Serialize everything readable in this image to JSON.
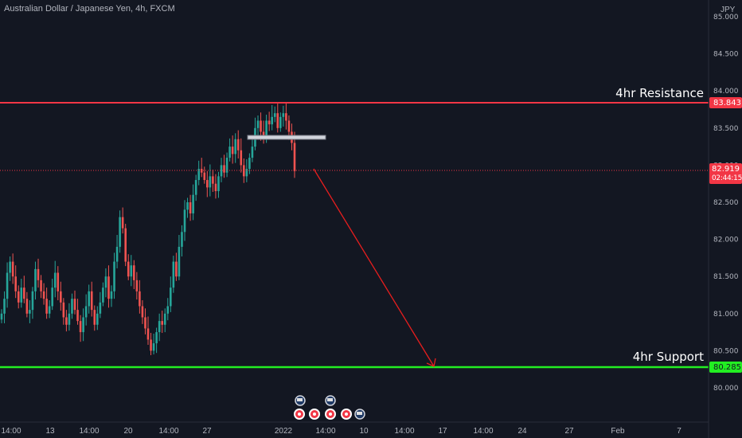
{
  "header": {
    "title": "Australian Dollar / Japanese Yen, 4h, FXCM"
  },
  "price_axis": {
    "currency": "JPY"
  },
  "current": {
    "price": "82.919",
    "countdown": "02:44:15"
  },
  "levels": {
    "resistance": {
      "label": "4hr Resistance",
      "value": "83.843",
      "color": "#f23645"
    },
    "support": {
      "label": "4hr Support",
      "value": "80.285",
      "color": "#22ee22"
    }
  },
  "colors": {
    "background": "#131722",
    "up": "#26a69a",
    "down": "#ef5350",
    "arrow": "#e81e1e",
    "text": "#b2b5be"
  },
  "chart_data": {
    "type": "candlestick",
    "title": "Australian Dollar / Japanese Yen, 4h, FXCM",
    "ylim": [
      79.5,
      85.1
    ],
    "y_ticks": [
      "80.000",
      "80.500",
      "81.000",
      "81.500",
      "82.000",
      "82.500",
      "83.000",
      "83.500",
      "84.000",
      "84.500",
      "85.000"
    ],
    "x_ticks": [
      "14:00",
      "13",
      "14:00",
      "20",
      "14:00",
      "27",
      "2022",
      "14:00",
      "10",
      "14:00",
      "17",
      "14:00",
      "24",
      "27",
      "Feb",
      "7"
    ],
    "grid": false,
    "annotations": [
      {
        "type": "hline",
        "label": "4hr Resistance",
        "value": 83.843
      },
      {
        "type": "hline",
        "label": "4hr Support",
        "value": 80.285
      },
      {
        "type": "arrow",
        "from_price": 82.9,
        "to_price": 80.28
      }
    ],
    "closes": [
      81.0,
      81.2,
      81.55,
      81.7,
      81.5,
      81.3,
      81.15,
      81.35,
      81.2,
      81.0,
      81.05,
      81.3,
      81.6,
      81.45,
      81.3,
      81.2,
      81.0,
      81.1,
      81.35,
      81.55,
      81.3,
      81.15,
      80.95,
      80.85,
      81.0,
      81.2,
      81.05,
      80.9,
      80.75,
      80.95,
      81.1,
      81.3,
      81.05,
      80.85,
      81.0,
      81.15,
      81.35,
      81.5,
      81.2,
      81.3,
      81.7,
      81.9,
      82.3,
      82.15,
      81.7,
      81.5,
      81.65,
      81.45,
      81.3,
      81.1,
      80.95,
      80.8,
      80.65,
      80.5,
      80.6,
      80.75,
      80.9,
      80.85,
      81.0,
      81.1,
      81.35,
      81.7,
      81.5,
      81.9,
      82.1,
      82.4,
      82.5,
      82.35,
      82.6,
      82.8,
      82.95,
      82.9,
      82.8,
      82.7,
      82.85,
      82.75,
      82.65,
      82.85,
      83.0,
      82.9,
      83.1,
      83.25,
      83.15,
      83.35,
      83.2,
      83.0,
      82.85,
      82.95,
      83.1,
      83.25,
      83.5,
      83.6,
      83.45,
      83.4,
      83.6,
      83.55,
      83.65,
      83.7,
      83.5,
      83.65,
      83.7,
      83.6,
      83.45,
      83.3,
      82.919
    ]
  }
}
